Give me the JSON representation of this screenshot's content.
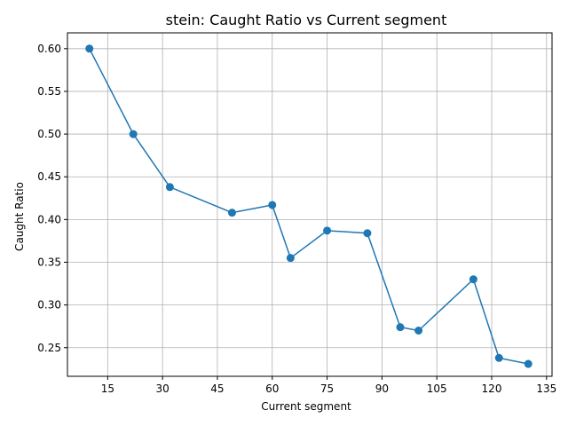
{
  "chart_data": {
    "type": "line",
    "title": "stein: Caught Ratio vs Current segment",
    "xlabel": "Current segment",
    "ylabel": "Caught Ratio",
    "xlim": [
      4.0,
      136.5
    ],
    "ylim": [
      0.2165,
      0.6185
    ],
    "xticks": [
      15,
      30,
      45,
      60,
      75,
      90,
      105,
      120,
      135
    ],
    "yticks": [
      0.25,
      0.3,
      0.35,
      0.4,
      0.45,
      0.5,
      0.55,
      0.6
    ],
    "grid": true,
    "series": [
      {
        "color": "#1f77b4",
        "marker": "circle",
        "x": [
          10,
          22,
          32,
          49,
          60,
          65,
          75,
          86,
          95,
          100,
          115,
          122,
          130
        ],
        "y": [
          0.6,
          0.5,
          0.438,
          0.408,
          0.417,
          0.355,
          0.387,
          0.384,
          0.274,
          0.27,
          0.33,
          0.238,
          0.231
        ]
      }
    ]
  }
}
